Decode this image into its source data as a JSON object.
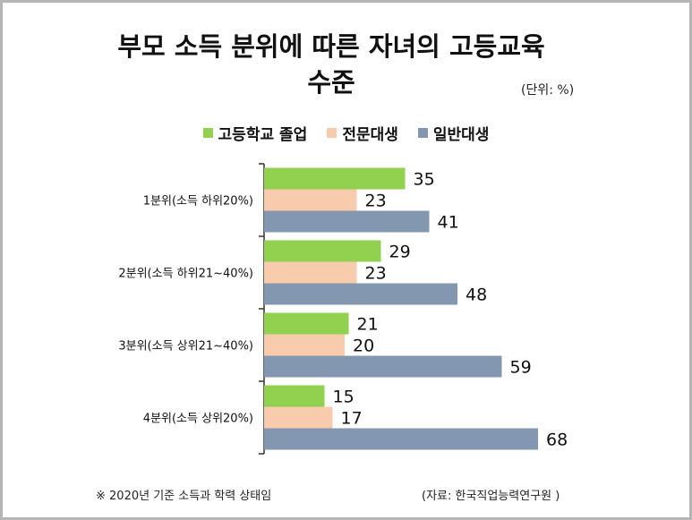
{
  "title_line1": "부모 소득 분위에 따른 자녀의 고등교육",
  "title_line2": "수준",
  "unit": "(단위: %)",
  "footnote": "※ 2020년 기준 소득과 학력 상태임",
  "source": "(자료: 한국직업능력연구원 )",
  "colors": {
    "highschool": "#92d050",
    "college": "#f8cbad",
    "university": "#8497b0"
  },
  "chart_data": {
    "type": "bar",
    "orientation": "horizontal",
    "categories": [
      "1분위(소득 하위20%)",
      "2분위(소득 하위21~40%)",
      "3분위(소득 상위21~40%)",
      "4분위(소득 상위20%)"
    ],
    "series": [
      {
        "name": "고등학교 졸업",
        "values": [
          35,
          29,
          21,
          15
        ]
      },
      {
        "name": "전문대생",
        "values": [
          23,
          23,
          20,
          17
        ]
      },
      {
        "name": "일반대생",
        "values": [
          41,
          48,
          59,
          68
        ]
      }
    ],
    "legend_position": "top-center",
    "grid": false
  }
}
